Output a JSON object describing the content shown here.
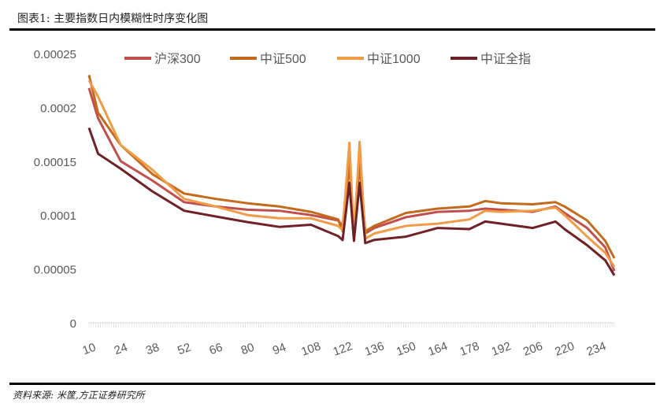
{
  "title": "图表1:   主要指数日内模糊性时序变化图",
  "source": "资料来源: 米筐,方正证券研究所",
  "chart_data": {
    "type": "line",
    "title": "主要指数日内模糊性时序变化图",
    "xlabel": "",
    "ylabel": "",
    "xlim": [
      10,
      242
    ],
    "ylim": [
      0,
      0.00025
    ],
    "x_tick_labels": [
      "10",
      "24",
      "38",
      "52",
      "66",
      "80",
      "94",
      "108",
      "122",
      "136",
      "150",
      "164",
      "178",
      "192",
      "206",
      "220",
      "234"
    ],
    "x_ticks": [
      10,
      24,
      38,
      52,
      66,
      80,
      94,
      108,
      122,
      136,
      150,
      164,
      178,
      192,
      206,
      220,
      234
    ],
    "y_ticks": [
      0,
      5e-05,
      0.0001,
      0.00015,
      0.0002,
      0.00025
    ],
    "y_tick_labels": [
      "0",
      "0.00005",
      "0.0001",
      "0.00015",
      "0.0002",
      "0.00025"
    ],
    "legend_position": "top",
    "grid": false,
    "x": [
      10,
      14,
      24,
      38,
      52,
      66,
      80,
      94,
      108,
      120,
      122,
      125,
      127,
      129.5,
      132,
      136,
      150,
      164,
      178,
      185,
      192,
      206,
      216,
      220,
      230,
      238,
      242
    ],
    "series": [
      {
        "name": "沪深300",
        "color": "#c0504d",
        "values": [
          0.000218,
          0.00019,
          0.00015,
          0.000132,
          0.000112,
          0.000108,
          0.000105,
          0.000104,
          0.0001,
          9.5e-05,
          9e-05,
          0.000148,
          8.5e-05,
          0.000148,
          8.3e-05,
          8.8e-05,
          9.8e-05,
          0.000103,
          0.000104,
          0.000106,
          0.000105,
          0.000103,
          0.000108,
          0.000102,
          8.8e-05,
          7e-05,
          4.8e-05
        ]
      },
      {
        "name": "中证500",
        "color": "#c46a1c",
        "values": [
          0.00023,
          0.000195,
          0.000165,
          0.000138,
          0.00012,
          0.000115,
          0.000111,
          0.000108,
          0.000103,
          9.6e-05,
          8.5e-05,
          0.000148,
          8e-05,
          0.00015,
          8.5e-05,
          9e-05,
          0.000102,
          0.000106,
          0.000108,
          0.000113,
          0.000111,
          0.00011,
          0.000112,
          0.000108,
          9.5e-05,
          7.6e-05,
          6e-05
        ]
      },
      {
        "name": "中证1000",
        "color": "#f19b47",
        "values": [
          0.000225,
          0.00021,
          0.000165,
          0.000142,
          0.000115,
          0.000108,
          0.0001,
          9.7e-05,
          9.7e-05,
          9e-05,
          8.6e-05,
          0.000167,
          8e-05,
          0.000168,
          7.8e-05,
          8.3e-05,
          9e-05,
          9.2e-05,
          9.6e-05,
          0.000104,
          0.000103,
          0.000104,
          0.000107,
          0.0001,
          8e-05,
          6.5e-05,
          5.2e-05
        ]
      },
      {
        "name": "中证全指",
        "color": "#6e2126",
        "values": [
          0.000181,
          0.000157,
          0.000143,
          0.000122,
          0.000104,
          9.87e-05,
          9.35e-05,
          8.9e-05,
          9.1e-05,
          8.05e-05,
          7.68e-05,
          0.00013,
          7.6e-05,
          0.00013,
          7.4e-05,
          7.7e-05,
          8e-05,
          8.8e-05,
          8.7e-05,
          9.4e-05,
          9.2e-05,
          8.8e-05,
          9.4e-05,
          8.7e-05,
          7.2e-05,
          5.8e-05,
          4.4e-05
        ]
      }
    ]
  }
}
